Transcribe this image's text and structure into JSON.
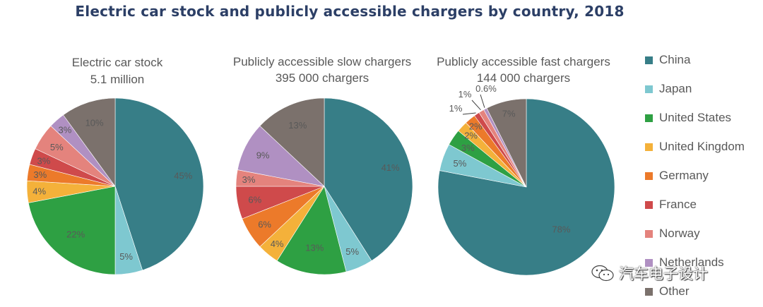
{
  "title": "Electric car stock and publicly accessible chargers by country, 2018",
  "legend": {
    "entries": [
      {
        "name": "China",
        "color": "#377e87"
      },
      {
        "name": "Japan",
        "color": "#7ec8d0"
      },
      {
        "name": "United States",
        "color": "#2ea043"
      },
      {
        "name": "United Kingdom",
        "color": "#f4b13a"
      },
      {
        "name": "Germany",
        "color": "#ec7a2a"
      },
      {
        "name": "France",
        "color": "#cf4a4b"
      },
      {
        "name": "Norway",
        "color": "#e4837d"
      },
      {
        "name": "Netherlands",
        "color": "#b090c2"
      },
      {
        "name": "Other",
        "color": "#7b716c"
      }
    ]
  },
  "chart_data": [
    {
      "type": "pie",
      "title_line1": "Electric car stock",
      "title_line2": "5.1 million",
      "categories": [
        "China",
        "Japan",
        "United States",
        "United Kingdom",
        "Germany",
        "France",
        "Norway",
        "Netherlands",
        "Other"
      ],
      "values": [
        45,
        5,
        22,
        4,
        3,
        3,
        5,
        3,
        10
      ],
      "labels": [
        "45%",
        "5%",
        "22%",
        "4%",
        "3%",
        "3%",
        "5%",
        "3%",
        "10%"
      ]
    },
    {
      "type": "pie",
      "title_line1": "Publicly accessible slow chargers",
      "title_line2": "395 000 chargers",
      "categories": [
        "China",
        "Japan",
        "United States",
        "United Kingdom",
        "Germany",
        "France",
        "Norway",
        "Netherlands",
        "Other"
      ],
      "values": [
        41,
        5,
        13,
        4,
        6,
        6,
        3,
        9,
        13
      ],
      "labels": [
        "41%",
        "5%",
        "13%",
        "4%",
        "6%",
        "6%",
        "3%",
        "9%",
        "13%"
      ]
    },
    {
      "type": "pie",
      "title_line1": "Publicly accessible fast chargers",
      "title_line2": "144 000 chargers",
      "categories": [
        "China",
        "Japan",
        "United States",
        "United Kingdom",
        "Germany",
        "France",
        "Norway",
        "Netherlands",
        "Other"
      ],
      "values": [
        78,
        5,
        3,
        2,
        2,
        1,
        1,
        0.6,
        7.4
      ],
      "labels": [
        "78%",
        "5%",
        "3%",
        "2%",
        "2%",
        "1%",
        "1%",
        "0.6%",
        "7%"
      ]
    }
  ],
  "watermark": {
    "text": "汽车电子设计"
  }
}
